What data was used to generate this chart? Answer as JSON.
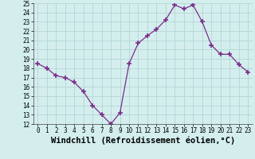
{
  "x": [
    0,
    1,
    2,
    3,
    4,
    5,
    6,
    7,
    8,
    9,
    10,
    11,
    12,
    13,
    14,
    15,
    16,
    17,
    18,
    19,
    20,
    21,
    22,
    23
  ],
  "y": [
    18.5,
    18.0,
    17.2,
    17.0,
    16.5,
    15.5,
    14.0,
    13.0,
    12.0,
    13.2,
    18.5,
    20.7,
    21.5,
    22.2,
    23.2,
    24.8,
    24.4,
    24.8,
    23.0,
    20.5,
    19.5,
    19.5,
    18.4,
    17.6
  ],
  "line_color": "#7b2d8b",
  "marker": "+",
  "marker_size": 4,
  "marker_lw": 1.2,
  "bg_color": "#d4eeee",
  "grid_color": "#b8d8d8",
  "xlabel": "Windchill (Refroidissement éolien,°C)",
  "ylim": [
    12,
    25
  ],
  "xlim_min": -0.5,
  "xlim_max": 23.5,
  "yticks": [
    12,
    13,
    14,
    15,
    16,
    17,
    18,
    19,
    20,
    21,
    22,
    23,
    24,
    25
  ],
  "xticks": [
    0,
    1,
    2,
    3,
    4,
    5,
    6,
    7,
    8,
    9,
    10,
    11,
    12,
    13,
    14,
    15,
    16,
    17,
    18,
    19,
    20,
    21,
    22,
    23
  ],
  "tick_fontsize": 5.5,
  "xlabel_fontsize": 7.5
}
